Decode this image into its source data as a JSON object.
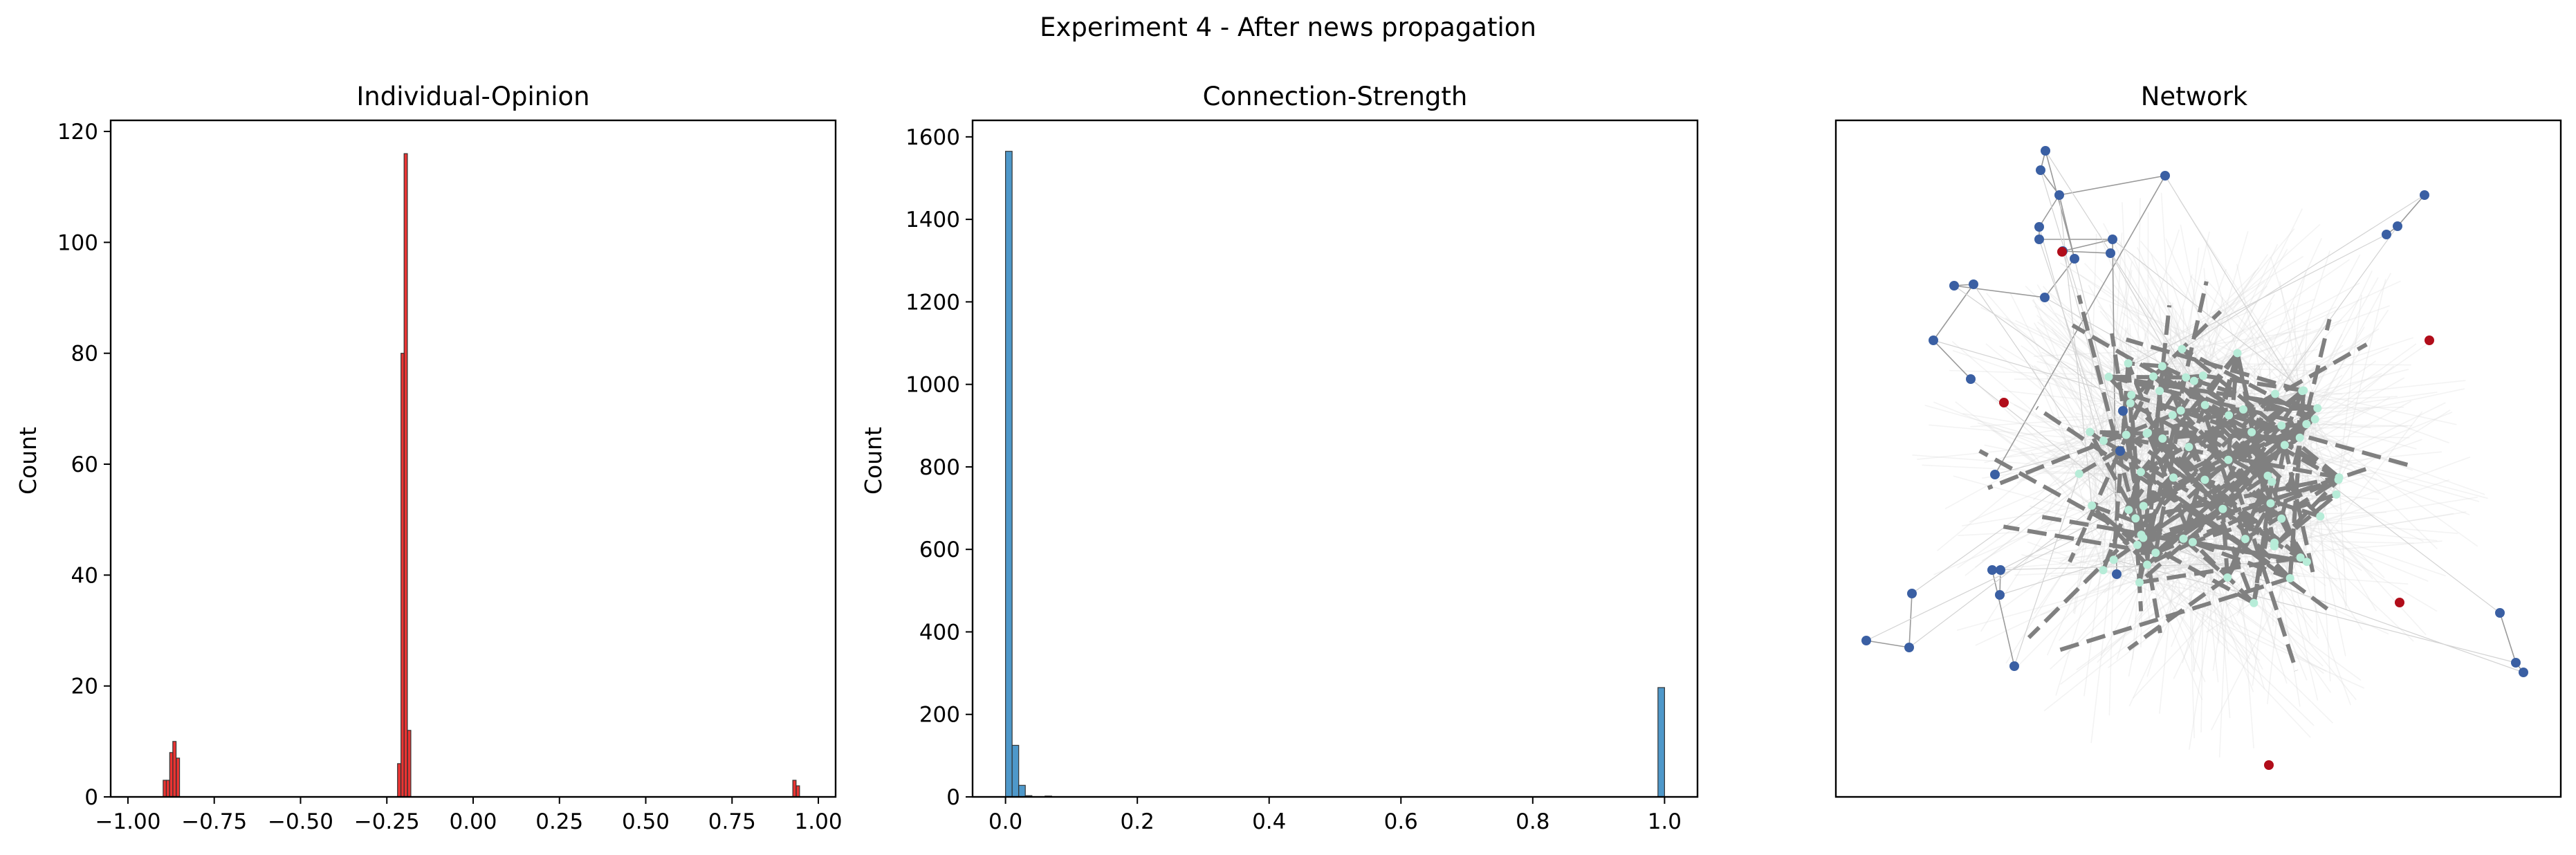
{
  "figure_title": "Experiment 4 - After news propagation",
  "chart_data": [
    {
      "type": "bar",
      "title": "Individual-Opinion",
      "xlabel": "",
      "ylabel": "Count",
      "xlim": [
        -1.05,
        1.05
      ],
      "ylim": [
        0,
        122
      ],
      "xticks": [
        -1.0,
        -0.75,
        -0.5,
        -0.25,
        0.0,
        0.25,
        0.5,
        0.75,
        1.0
      ],
      "xtick_labels": [
        "−1.00",
        "−0.75",
        "−0.50",
        "−0.25",
        "0.00",
        "0.25",
        "0.50",
        "0.75",
        "1.00"
      ],
      "yticks": [
        0,
        20,
        40,
        60,
        80,
        100,
        120
      ],
      "ytick_labels": [
        "0",
        "20",
        "40",
        "60",
        "80",
        "100",
        "120"
      ],
      "bin_width": 0.0095,
      "color": "#e8110f",
      "bins": [
        {
          "x": -0.898,
          "count": 3
        },
        {
          "x": -0.889,
          "count": 3
        },
        {
          "x": -0.879,
          "count": 8
        },
        {
          "x": -0.87,
          "count": 10
        },
        {
          "x": -0.86,
          "count": 7
        },
        {
          "x": -0.219,
          "count": 6
        },
        {
          "x": -0.209,
          "count": 80
        },
        {
          "x": -0.2,
          "count": 116
        },
        {
          "x": -0.19,
          "count": 12
        },
        {
          "x": 0.926,
          "count": 3
        },
        {
          "x": 0.936,
          "count": 2
        }
      ]
    },
    {
      "type": "bar",
      "title": "Connection-Strength",
      "xlabel": "",
      "ylabel": "Count",
      "xlim": [
        -0.05,
        1.05
      ],
      "ylim": [
        0,
        1640
      ],
      "xticks": [
        0.0,
        0.2,
        0.4,
        0.6,
        0.8,
        1.0
      ],
      "xtick_labels": [
        "0.0",
        "0.2",
        "0.4",
        "0.6",
        "0.8",
        "1.0"
      ],
      "yticks": [
        0,
        200,
        400,
        600,
        800,
        1000,
        1200,
        1400,
        1600
      ],
      "ytick_labels": [
        "0",
        "200",
        "400",
        "600",
        "800",
        "1000",
        "1200",
        "1400",
        "1600"
      ],
      "bin_width": 0.01,
      "color": "#2f86c1",
      "bins": [
        {
          "x": 0.0,
          "count": 1565
        },
        {
          "x": 0.01,
          "count": 125
        },
        {
          "x": 0.02,
          "count": 28
        },
        {
          "x": 0.03,
          "count": 3
        },
        {
          "x": 0.06,
          "count": 2
        },
        {
          "x": 0.99,
          "count": 265
        }
      ]
    },
    {
      "type": "network",
      "title": "Network",
      "node_colors": {
        "outer": "#3a5fa3",
        "extreme": "#b10d1a",
        "core": "#b7ecd8"
      },
      "edge_colors": {
        "strong": "#808080",
        "weak": "#dcdcdc"
      }
    }
  ]
}
